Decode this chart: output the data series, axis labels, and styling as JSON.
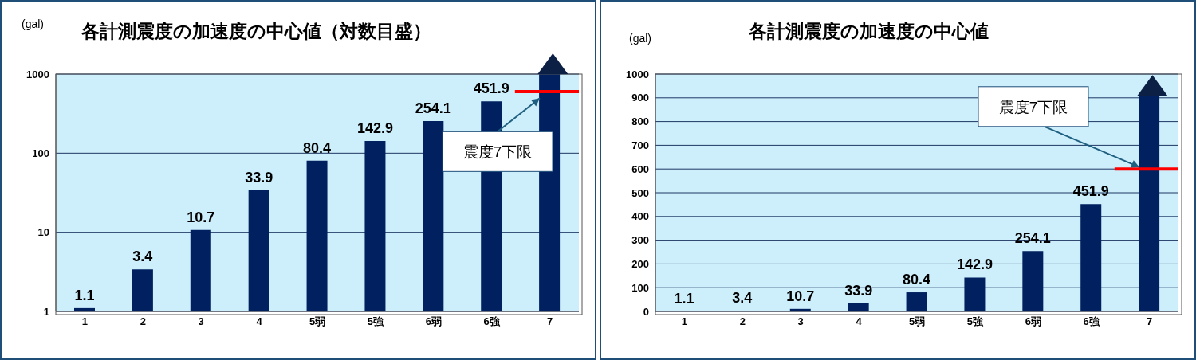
{
  "chart_data": [
    {
      "type": "bar",
      "title": "各計測震度の加速度の中心値（対数目盛）",
      "ylabel": "(gal)",
      "categories": [
        "1",
        "2",
        "3",
        "4",
        "5弱",
        "5強",
        "6弱",
        "6強",
        "7"
      ],
      "values": [
        1.1,
        3.4,
        10.7,
        33.9,
        80.4,
        142.9,
        254.1,
        451.9,
        1000
      ],
      "value_labels": [
        "1.1",
        "3.4",
        "10.7",
        "33.9",
        "80.4",
        "142.9",
        "254.1",
        "451.9",
        null
      ],
      "color": "#002060",
      "log": true,
      "ylim": [
        1,
        1000
      ],
      "yticks": [
        1,
        10,
        100,
        1000
      ],
      "grid": "y",
      "ref_lines": [
        {
          "axis": "y",
          "value": 600,
          "label": "震度7下限",
          "color": "#ff0000"
        }
      ]
    },
    {
      "type": "bar",
      "title": "各計測震度の加速度の中心値",
      "ylabel": "(gal)",
      "categories": [
        "1",
        "2",
        "3",
        "4",
        "5弱",
        "5強",
        "6弱",
        "6強",
        "7"
      ],
      "values": [
        1.1,
        3.4,
        10.7,
        33.9,
        80.4,
        142.9,
        254.1,
        451.9,
        910
      ],
      "value_labels": [
        "1.1",
        "3.4",
        "10.7",
        "33.9",
        "80.4",
        "142.9",
        "254.1",
        "451.9",
        null
      ],
      "color": "#002060",
      "ylim": [
        0,
        1000
      ],
      "yticks": [
        0,
        100,
        200,
        300,
        400,
        500,
        600,
        700,
        800,
        900,
        1000
      ],
      "grid": "y",
      "ref_lines": [
        {
          "axis": "y",
          "value": 600,
          "label": "震度7下限",
          "color": "#ff0000"
        }
      ]
    }
  ]
}
